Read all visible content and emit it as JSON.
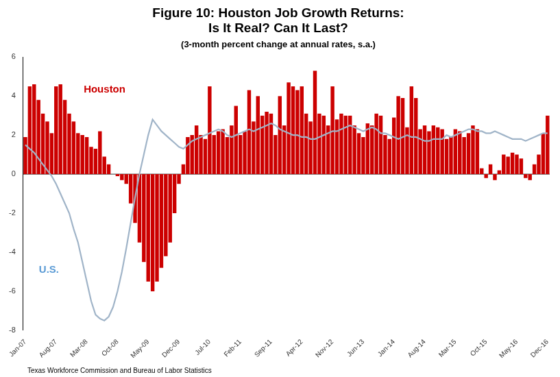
{
  "chart_data": {
    "type": "bar",
    "title": [
      "Figure 10: Houston Job Growth Returns:",
      "Is It Real? Can It Last?"
    ],
    "subtitle": "(3-month percent change at annual rates, s.a.)",
    "source": "Texas Workforce Commission and Bureau of Labor Statistics",
    "categories": [
      "Jan-07",
      null,
      null,
      null,
      null,
      null,
      null,
      "Aug-07",
      null,
      null,
      null,
      null,
      null,
      null,
      "Mar-08",
      null,
      null,
      null,
      null,
      null,
      null,
      "Oct-08",
      null,
      null,
      null,
      null,
      null,
      null,
      "May-09",
      null,
      null,
      null,
      null,
      null,
      null,
      "Dec-09",
      null,
      null,
      null,
      null,
      null,
      null,
      "Jul-10",
      null,
      null,
      null,
      null,
      null,
      null,
      "Feb-11",
      null,
      null,
      null,
      null,
      null,
      null,
      "Sep-11",
      null,
      null,
      null,
      null,
      null,
      null,
      "Apr-12",
      null,
      null,
      null,
      null,
      null,
      null,
      "Nov-12",
      null,
      null,
      null,
      null,
      null,
      null,
      "Jun-13",
      null,
      null,
      null,
      null,
      null,
      null,
      "Jan-14",
      null,
      null,
      null,
      null,
      null,
      null,
      "Aug-14",
      null,
      null,
      null,
      null,
      null,
      null,
      "Mar-15",
      null,
      null,
      null,
      null,
      null,
      null,
      "Oct-15",
      null,
      null,
      null,
      null,
      null,
      null,
      "May-16",
      null,
      null,
      null,
      null,
      null,
      null,
      "Dec-16"
    ],
    "series": [
      {
        "name": "Houston",
        "type": "bar",
        "color": "#CC0000",
        "values": [
          1.9,
          4.5,
          4.6,
          3.8,
          3.1,
          2.7,
          2.1,
          4.5,
          4.6,
          3.8,
          3.1,
          2.7,
          2.1,
          2.0,
          1.9,
          1.4,
          1.3,
          2.2,
          0.9,
          0.5,
          0.0,
          -0.1,
          -0.3,
          -0.5,
          -1.5,
          -2.5,
          -3.5,
          -4.5,
          -5.5,
          -6.0,
          -5.5,
          -4.8,
          -4.2,
          -3.5,
          -2.0,
          -0.5,
          0.5,
          1.9,
          2.0,
          2.5,
          2.0,
          1.8,
          4.5,
          2.0,
          2.2,
          2.3,
          1.9,
          2.5,
          3.5,
          2.0,
          2.2,
          4.3,
          2.7,
          4.0,
          3.0,
          3.2,
          3.1,
          2.0,
          4.0,
          2.5,
          4.7,
          4.5,
          4.3,
          4.5,
          3.1,
          2.7,
          5.3,
          3.1,
          3.0,
          2.5,
          4.5,
          2.8,
          3.1,
          3.0,
          3.0,
          2.5,
          2.1,
          1.9,
          2.6,
          2.5,
          3.1,
          3.0,
          2.0,
          1.8,
          2.9,
          4.0,
          3.9,
          2.4,
          4.5,
          3.9,
          2.3,
          2.5,
          2.2,
          2.5,
          2.4,
          2.3,
          1.8,
          1.9,
          2.3,
          2.2,
          1.9,
          2.1,
          2.5,
          2.3,
          0.3,
          -0.2,
          0.5,
          -0.3,
          0.2,
          1.0,
          0.9,
          1.1,
          1.0,
          0.8,
          -0.2,
          -0.3,
          0.5,
          1.0,
          2.1,
          3.0
        ]
      },
      {
        "name": "U.S.",
        "type": "line",
        "color": "#A0B4C8",
        "values": [
          1.5,
          1.3,
          1.1,
          0.8,
          0.5,
          0.2,
          -0.1,
          -0.5,
          -1.0,
          -1.5,
          -2.0,
          -2.8,
          -3.5,
          -4.5,
          -5.5,
          -6.5,
          -7.2,
          -7.4,
          -7.5,
          -7.3,
          -6.8,
          -6.0,
          -5.0,
          -3.8,
          -2.5,
          -1.2,
          0.0,
          1.0,
          2.0,
          2.8,
          2.5,
          2.2,
          2.0,
          1.8,
          1.6,
          1.4,
          1.3,
          1.5,
          1.7,
          1.8,
          1.9,
          2.0,
          2.1,
          2.2,
          2.3,
          2.2,
          2.0,
          1.9,
          2.0,
          2.1,
          2.2,
          2.3,
          2.2,
          2.3,
          2.4,
          2.5,
          2.6,
          2.5,
          2.3,
          2.2,
          2.1,
          2.0,
          2.0,
          1.9,
          1.9,
          1.8,
          1.8,
          1.9,
          2.0,
          2.1,
          2.2,
          2.2,
          2.3,
          2.4,
          2.5,
          2.4,
          2.3,
          2.2,
          2.3,
          2.4,
          2.3,
          2.1,
          2.1,
          2.0,
          1.9,
          1.8,
          1.9,
          2.0,
          1.9,
          1.9,
          1.8,
          1.7,
          1.7,
          1.8,
          1.8,
          1.8,
          2.0,
          1.9,
          2.0,
          2.1,
          2.2,
          2.3,
          2.3,
          2.2,
          2.2,
          2.1,
          2.1,
          2.2,
          2.1,
          2.0,
          1.9,
          1.8,
          1.8,
          1.8,
          1.7,
          1.8,
          1.9,
          2.0,
          2.1,
          2.1
        ]
      }
    ],
    "annotations": [
      {
        "text": "Houston",
        "color": "#CC0000"
      },
      {
        "text": "U.S.",
        "color": "#5B9BD5"
      }
    ],
    "ylim": [
      -8,
      6
    ],
    "yticks": [
      -8,
      -6,
      -4,
      -2,
      0,
      2,
      4,
      6
    ],
    "grid": false
  }
}
